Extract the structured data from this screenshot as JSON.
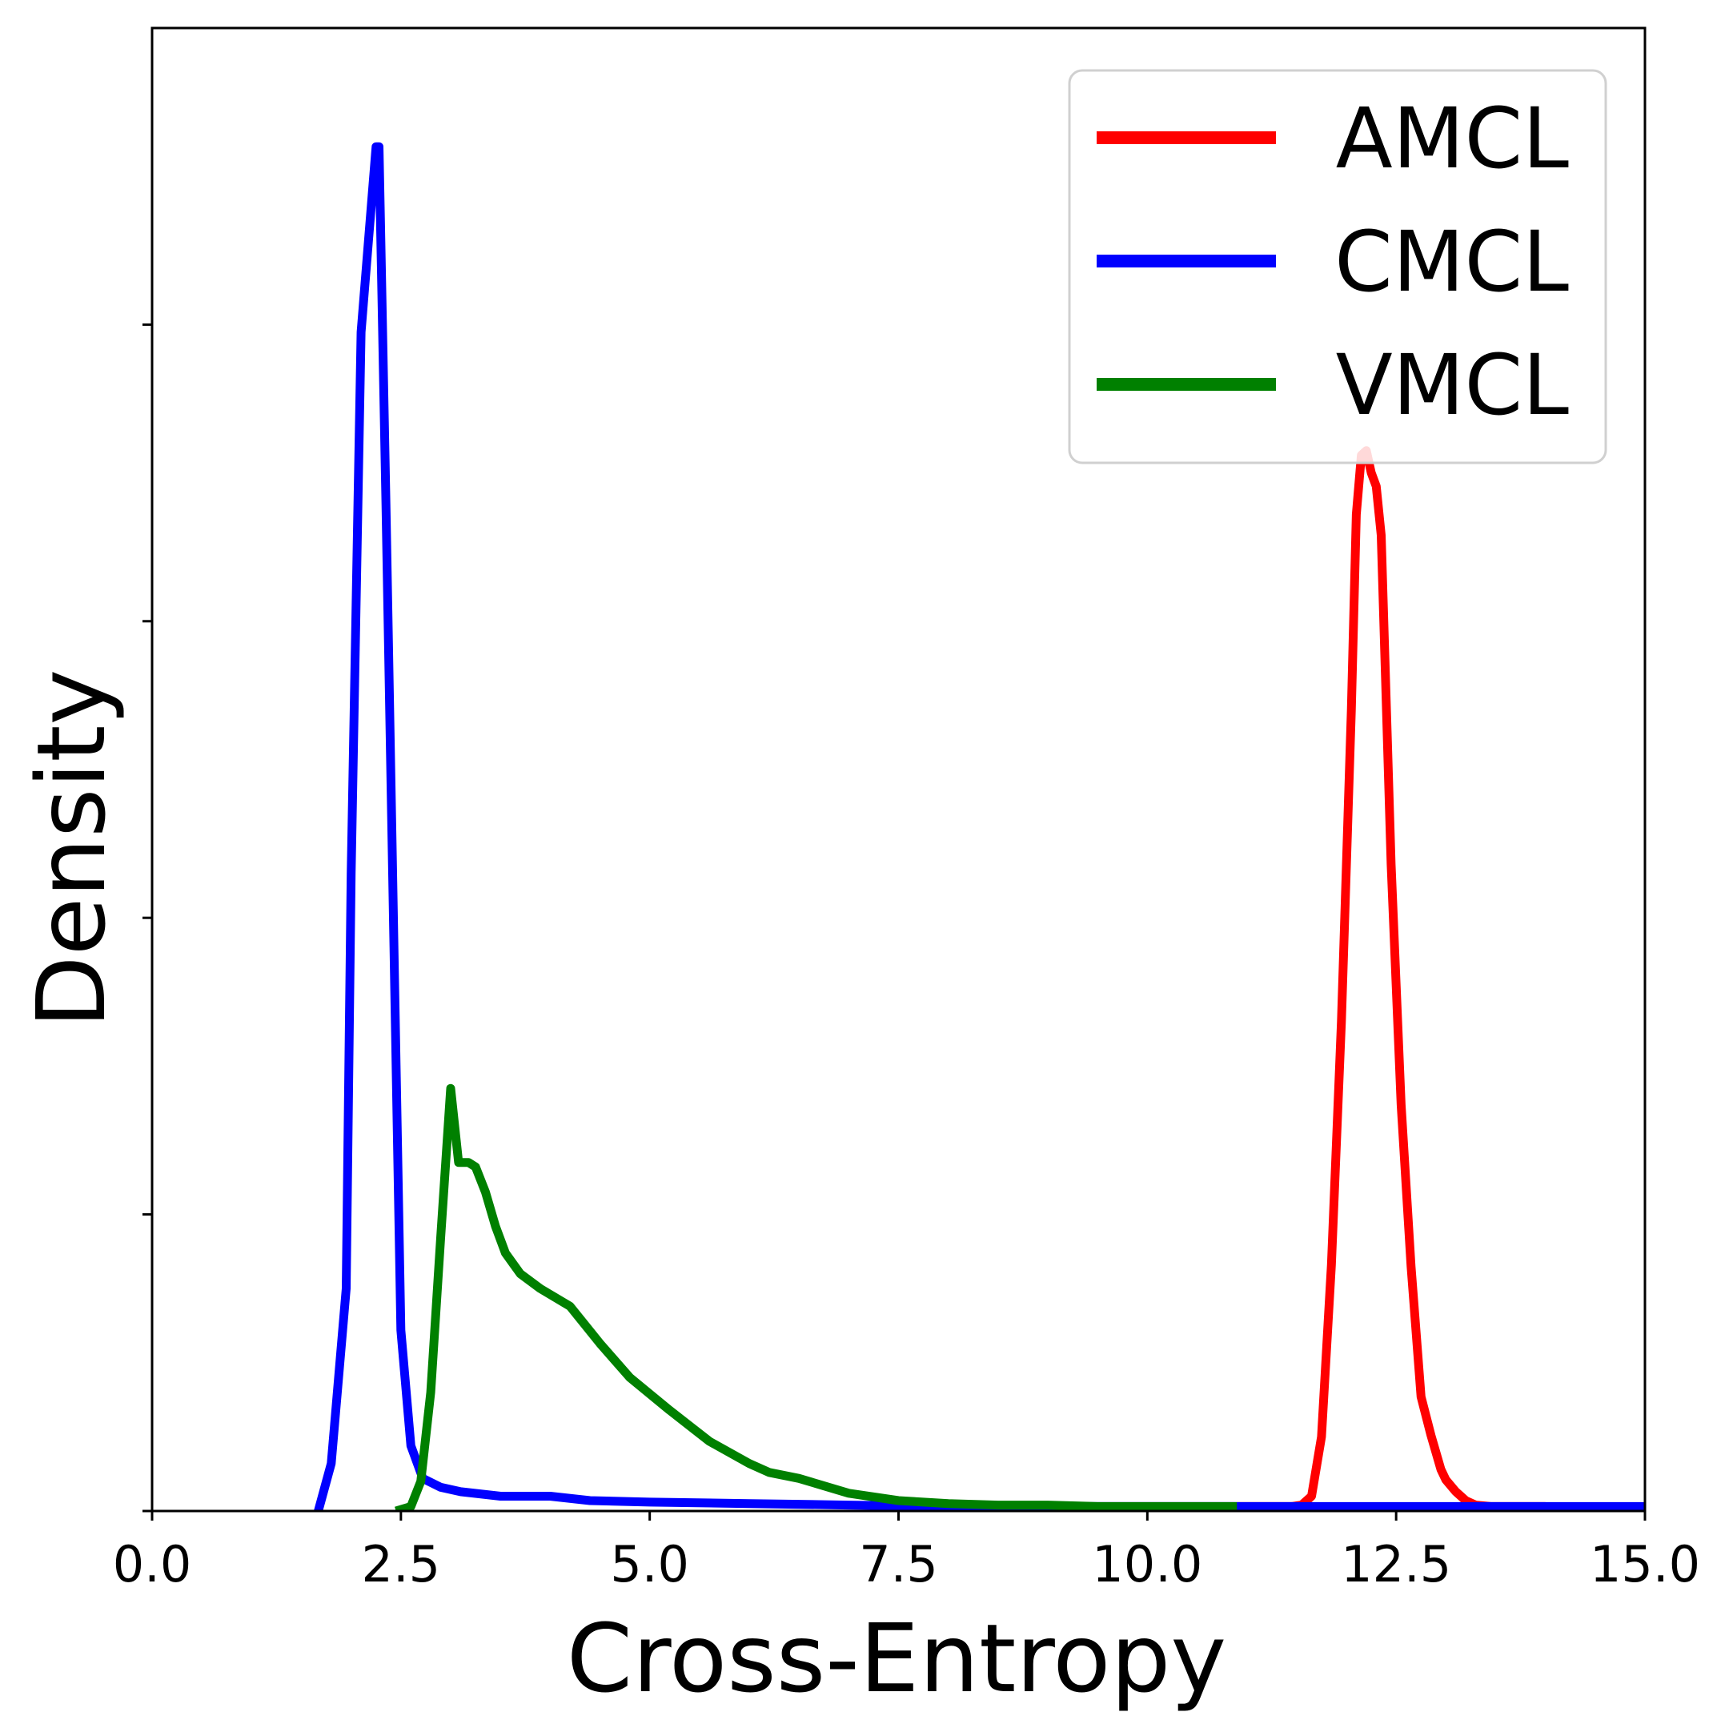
{
  "chart_data": {
    "type": "line",
    "title": "",
    "xlabel": "Cross-Entropy",
    "ylabel": "Density",
    "xlim": [
      0,
      15
    ],
    "ylim": [
      0,
      1.0
    ],
    "xticks": [
      0,
      2.5,
      5,
      7.5,
      10,
      12.5,
      15
    ],
    "xtick_labels": [
      "0.0",
      "2.5",
      "5.0",
      "7.5",
      "10.0",
      "12.5",
      "15.0"
    ],
    "yticks": [
      0.2,
      0.4,
      0.6,
      0.8
    ],
    "ytick_labels": [
      "",
      "",
      "",
      ""
    ],
    "grid": false,
    "legend_position": "top-right",
    "series": [
      {
        "name": "AMCL",
        "color": "#ff0000",
        "x": [
          10.9,
          11.1,
          11.3,
          11.45,
          11.55,
          11.65,
          11.75,
          11.85,
          11.95,
          12.05,
          12.1,
          12.15,
          12.2,
          12.25,
          12.3,
          12.35,
          12.45,
          12.55,
          12.65,
          12.75,
          12.85,
          12.95,
          13.0,
          13.1,
          13.2,
          13.3,
          13.45,
          13.6,
          13.8,
          14.0
        ],
        "y": [
          0.003,
          0.003,
          0.003,
          0.003,
          0.004,
          0.01,
          0.05,
          0.166,
          0.33,
          0.54,
          0.672,
          0.712,
          0.715,
          0.7,
          0.691,
          0.658,
          0.436,
          0.274,
          0.165,
          0.077,
          0.051,
          0.028,
          0.021,
          0.013,
          0.007,
          0.004,
          0.003,
          0.003,
          0.003,
          0.003
        ]
      },
      {
        "name": "CMCL",
        "color": "#0000ff",
        "x": [
          1.67,
          1.8,
          1.95,
          2.0,
          2.1,
          2.25,
          2.28,
          2.35,
          2.5,
          2.6,
          2.72,
          2.9,
          3.1,
          3.5,
          4.0,
          4.4,
          5.0,
          6.0,
          7.0,
          8.0,
          9.0,
          10.0,
          11.0,
          12.0,
          13.0,
          14.0,
          15.0
        ],
        "y": [
          0.0,
          0.032,
          0.15,
          0.43,
          0.795,
          0.92,
          0.92,
          0.678,
          0.122,
          0.044,
          0.022,
          0.016,
          0.013,
          0.01,
          0.01,
          0.007,
          0.006,
          0.005,
          0.004,
          0.003,
          0.003,
          0.003,
          0.003,
          0.003,
          0.003,
          0.003,
          0.003
        ]
      },
      {
        "name": "VMCL",
        "color": "#008000",
        "x": [
          2.45,
          2.6,
          2.7,
          2.8,
          2.9,
          3.0,
          3.08,
          3.18,
          3.25,
          3.35,
          3.45,
          3.55,
          3.7,
          3.9,
          4.2,
          4.5,
          4.8,
          5.2,
          5.6,
          6.0,
          6.2,
          6.5,
          7.0,
          7.5,
          8.0,
          8.5,
          9.0,
          9.5,
          10.0,
          10.5,
          10.9
        ],
        "y": [
          0.0,
          0.003,
          0.02,
          0.08,
          0.185,
          0.285,
          0.235,
          0.235,
          0.232,
          0.215,
          0.192,
          0.174,
          0.16,
          0.15,
          0.138,
          0.113,
          0.09,
          0.068,
          0.047,
          0.032,
          0.026,
          0.022,
          0.012,
          0.007,
          0.005,
          0.004,
          0.004,
          0.003,
          0.003,
          0.003,
          0.003
        ]
      }
    ]
  }
}
